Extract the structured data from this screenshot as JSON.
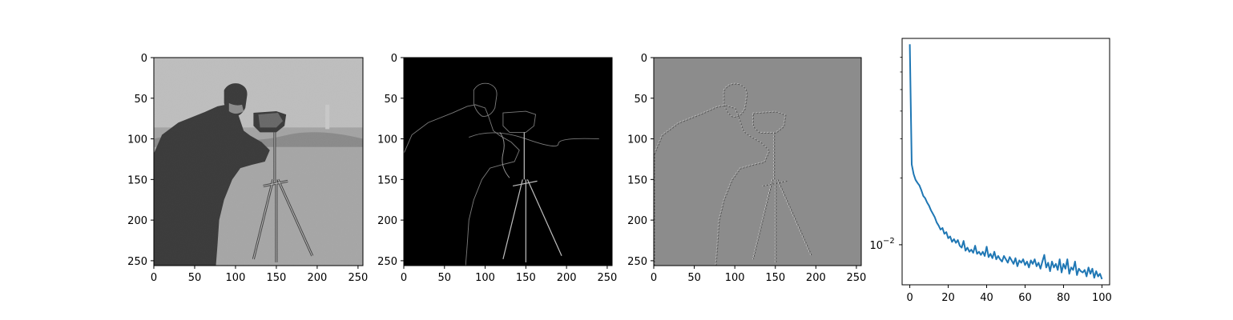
{
  "chart_data": [
    {
      "type": "image",
      "image_kind": "grayscale photograph (cameraman)",
      "image_size": [
        256,
        256
      ],
      "xticks": [
        "0",
        "50",
        "100",
        "150",
        "200",
        "250"
      ],
      "yticks": [
        "0",
        "50",
        "100",
        "150",
        "200",
        "250"
      ],
      "colormap": "gray"
    },
    {
      "type": "image",
      "image_kind": "gradient-magnitude edge map of the photograph",
      "image_size": [
        256,
        256
      ],
      "xticks": [
        "0",
        "50",
        "100",
        "150",
        "200",
        "250"
      ],
      "yticks": [
        "0",
        "50",
        "100",
        "150",
        "200",
        "250"
      ],
      "colormap": "gray",
      "background": "#000000"
    },
    {
      "type": "image",
      "image_kind": "signed residual / divergence map, mostly mid-gray",
      "image_size": [
        256,
        256
      ],
      "xticks": [
        "0",
        "50",
        "100",
        "150",
        "200",
        "250"
      ],
      "yticks": [
        "0",
        "50",
        "100",
        "150",
        "200",
        "250"
      ],
      "colormap": "gray",
      "background": "#8c8c8c"
    },
    {
      "type": "line",
      "yscale": "log",
      "xlim": [
        -4,
        104
      ],
      "ylim": [
        0.0066,
        0.085
      ],
      "xticks": [
        0,
        20,
        40,
        60,
        80,
        100
      ],
      "ytick_major": [
        0.01
      ],
      "ytick_major_label": "10",
      "ytick_major_exp": "−2",
      "ytick_minor": [
        0.02,
        0.03,
        0.04,
        0.05,
        0.06,
        0.07
      ],
      "grid": false,
      "color": "#1f77b4",
      "series": [
        {
          "x": [
            0,
            1,
            2,
            3,
            4,
            5,
            6,
            7,
            8,
            9,
            10,
            11,
            12,
            13,
            14,
            15,
            16,
            17,
            18,
            19,
            20,
            21,
            22,
            23,
            24,
            25,
            26,
            27,
            28,
            29,
            30,
            31,
            32,
            33,
            34,
            35,
            36,
            37,
            38,
            39,
            40,
            41,
            42,
            43,
            44,
            45,
            46,
            47,
            48,
            49,
            50,
            51,
            52,
            53,
            54,
            55,
            56,
            57,
            58,
            59,
            60,
            61,
            62,
            63,
            64,
            65,
            66,
            67,
            68,
            69,
            70,
            71,
            72,
            73,
            74,
            75,
            76,
            77,
            78,
            79,
            80,
            81,
            82,
            83,
            84,
            85,
            86,
            87,
            88,
            89,
            90,
            91,
            92,
            93,
            94,
            95,
            96,
            97,
            98,
            99,
            100
          ],
          "y": [
            0.08,
            0.023,
            0.0208,
            0.0196,
            0.019,
            0.0185,
            0.0176,
            0.0166,
            0.0162,
            0.0155,
            0.015,
            0.0143,
            0.0138,
            0.0133,
            0.0126,
            0.0122,
            0.0117,
            0.0119,
            0.0112,
            0.0114,
            0.0107,
            0.0109,
            0.0103,
            0.0106,
            0.0102,
            0.0105,
            0.0099,
            0.0097,
            0.0104,
            0.0094,
            0.0097,
            0.0093,
            0.0095,
            0.0092,
            0.0099,
            0.0091,
            0.0093,
            0.009,
            0.0093,
            0.0089,
            0.0098,
            0.0088,
            0.0091,
            0.0087,
            0.0093,
            0.0086,
            0.0089,
            0.0086,
            0.0084,
            0.0089,
            0.0086,
            0.0083,
            0.0088,
            0.0085,
            0.0082,
            0.0087,
            0.008,
            0.0085,
            0.0083,
            0.0086,
            0.0081,
            0.0084,
            0.0079,
            0.0085,
            0.0082,
            0.0086,
            0.008,
            0.0083,
            0.0078,
            0.0084,
            0.009,
            0.0079,
            0.0083,
            0.0076,
            0.0084,
            0.0079,
            0.0082,
            0.0077,
            0.0086,
            0.0075,
            0.0082,
            0.0078,
            0.0086,
            0.0074,
            0.0079,
            0.0077,
            0.0084,
            0.0073,
            0.0078,
            0.0076,
            0.0075,
            0.0077,
            0.0072,
            0.0079,
            0.0074,
            0.0078,
            0.0071,
            0.0076,
            0.0072,
            0.0074,
            0.007
          ]
        }
      ]
    }
  ]
}
